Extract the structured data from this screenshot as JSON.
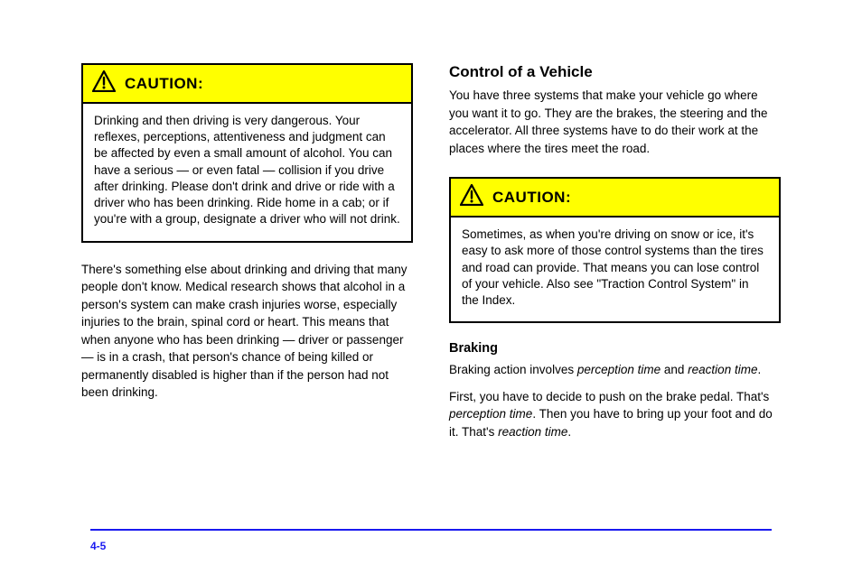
{
  "colors": {
    "caution_bg": "#ffff00",
    "border": "#000000",
    "rule": "#1a1af0",
    "page_bg": "#ffffff"
  },
  "left": {
    "caution": {
      "title": "CAUTION:",
      "body": "Drinking and then driving is very dangerous. Your reflexes, perceptions, attentiveness and judgment can be affected by even a small amount of alcohol. You can have a serious — or even fatal — collision if you drive after drinking. Please don't drink and drive or ride with a driver who has been drinking. Ride home in a cab; or if you're with a group, designate a driver who will not drink."
    },
    "paragraphs": [
      "There's something else about drinking and driving that many people don't know. Medical research shows that alcohol in a person's system can make crash injuries worse, especially injuries to the brain, spinal cord or heart. This means that when anyone who has been drinking — driver or passenger — is in a crash, that person's chance of being killed or permanently disabled is higher than if the person had not been drinking."
    ]
  },
  "right": {
    "heading": "Control of a Vehicle",
    "intro": "You have three systems that make your vehicle go where you want it to go. They are the brakes, the steering and the accelerator. All three systems have to do their work at the places where the tires meet the road.",
    "caution": {
      "title": "CAUTION:",
      "body": "Sometimes, as when you're driving on snow or ice, it's easy to ask more of those control systems than the tires and road can provide. That means you can lose control of your vehicle. Also see \"Traction Control System\" in the Index."
    },
    "subhead": "Braking",
    "braking_p1": "Braking action involves perception time and reaction time.",
    "braking_p2": "First, you have to decide to push on the brake pedal. That's perception time. Then you have to bring up your foot and do it. That's reaction time."
  },
  "page_number": "4-5"
}
